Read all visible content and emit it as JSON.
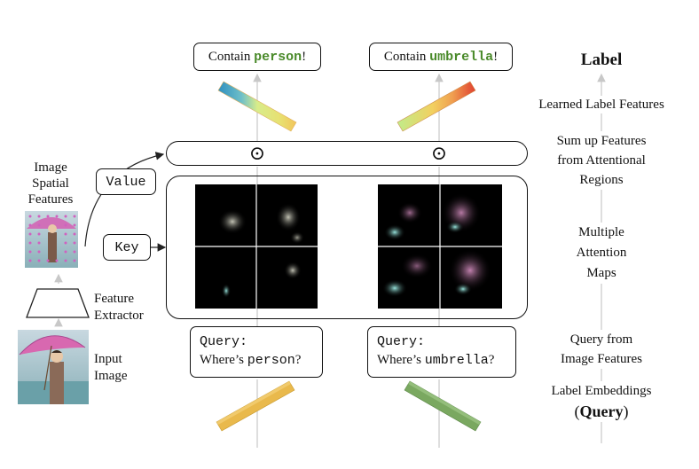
{
  "top_labels": [
    {
      "prefix": "Contain ",
      "word": "person",
      "suffix": "!"
    },
    {
      "prefix": "Contain ",
      "word": "umbrella",
      "suffix": "!"
    }
  ],
  "left": {
    "spatial_label": [
      "Image",
      "Spatial",
      "Features"
    ],
    "value_label": "Value",
    "key_label": "Key",
    "extractor_label": [
      "Feature",
      "Extractor"
    ],
    "input_label": [
      "Input",
      "Image"
    ]
  },
  "queries": [
    {
      "head": "Query:",
      "pre": "Where’s ",
      "word": "person",
      "post": "?"
    },
    {
      "head": "Query:",
      "pre": "Where’s ",
      "word": "umbrella",
      "post": "?"
    }
  ],
  "right_labels": {
    "label": "Label",
    "learned": "Learned Label Features",
    "sumup": [
      "Sum up Features",
      "from Attentional",
      "Regions"
    ],
    "multiple": [
      "Multiple",
      "Attention",
      "Maps"
    ],
    "query_from": [
      "Query from",
      "Image Features"
    ],
    "label_emb": "Label Embeddings",
    "query_open": "(",
    "query_word": "Query",
    "query_close": ")"
  },
  "odot": "⊙",
  "colors": {
    "person_top": [
      "#3a9fc4",
      "#d8e890",
      "#f0c060"
    ],
    "umbrella_top": [
      "#bde88a",
      "#f0c060",
      "#e05040"
    ],
    "person_query": "#e8b84a",
    "umbrella_query": "#7aa860",
    "word_green": "#4a8a2a"
  }
}
